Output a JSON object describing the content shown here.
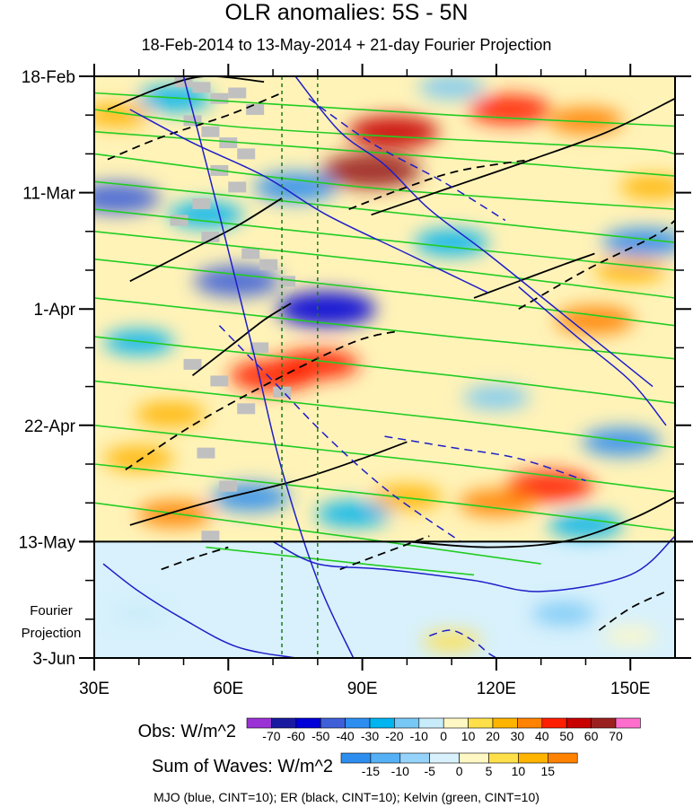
{
  "chart_data": {
    "type": "heatmap",
    "title": "OLR anomalies: 5S - 5N",
    "subtitle": "18-Feb-2014 to 13-May-2014 + 21-day Fourier Projection",
    "x_axis": {
      "range_deg_east": [
        30,
        160
      ],
      "ticks": [
        30,
        60,
        90,
        120,
        150
      ],
      "tick_labels": [
        "30E",
        "60E",
        "90E",
        "120E",
        "150E"
      ]
    },
    "y_axis": {
      "reversed": true,
      "range": [
        "2014-02-18",
        "2014-06-03"
      ],
      "ticks": [
        "2014-02-18",
        "2014-03-11",
        "2014-04-01",
        "2014-04-22",
        "2014-05-13",
        "2014-06-03"
      ],
      "tick_labels": [
        "18-Feb",
        "11-Mar",
        "1-Apr",
        "22-Apr",
        "13-May",
        "3-Jun"
      ]
    },
    "projection_label": [
      "Fourier",
      "Projection"
    ],
    "observation_end": "2014-05-13",
    "reference_lines_deg_east": [
      72,
      80
    ],
    "colorbar_obs": {
      "label": "Obs: W/m^2",
      "levels": [
        -70,
        -60,
        -50,
        -40,
        -30,
        -20,
        -10,
        0,
        10,
        20,
        30,
        40,
        50,
        60,
        70
      ],
      "colors": [
        "#9a32d6",
        "#1a1aa0",
        "#0000d8",
        "#3f5fd8",
        "#2e8ef0",
        "#00b4f0",
        "#78c8f5",
        "#c9ecfa",
        "#fff8c4",
        "#ffe04a",
        "#ffb400",
        "#ff8200",
        "#ff1e00",
        "#c80000",
        "#9a2020",
        "#ff6ecc"
      ]
    },
    "colorbar_waves": {
      "label": "Sum of Waves: W/m^2",
      "levels": [
        -15,
        -10,
        -5,
        0,
        5,
        10,
        15
      ],
      "colors": [
        "#2e8ef0",
        "#55b0f5",
        "#96d3fa",
        "#d8f1fc",
        "#fff8c4",
        "#ffe04a",
        "#ffb400",
        "#ff8200"
      ]
    },
    "contour_legend": "MJO (blue, CINT=10); ER (black, CINT=10); Kelvin (green, CINT=10)",
    "contour_colors": {
      "mjo": "#1e1ec8",
      "er": "#000000",
      "kelvin": "#22cc22"
    },
    "anomaly_blobs": [
      {
        "lon": 97,
        "date": "2014-02-28",
        "value": 50
      },
      {
        "lon": 92,
        "date": "2014-03-07",
        "value": 60
      },
      {
        "lon": 123,
        "date": "2014-02-24",
        "value": 40
      },
      {
        "lon": 140,
        "date": "2014-02-26",
        "value": 30
      },
      {
        "lon": 70,
        "date": "2014-04-13",
        "value": 45
      },
      {
        "lon": 80,
        "date": "2014-04-11",
        "value": 40
      },
      {
        "lon": 132,
        "date": "2014-05-03",
        "value": 45
      },
      {
        "lon": 120,
        "date": "2014-05-06",
        "value": 30
      },
      {
        "lon": 142,
        "date": "2014-04-03",
        "value": 35
      },
      {
        "lon": 47,
        "date": "2014-04-20",
        "value": 25
      },
      {
        "lon": 40,
        "date": "2014-04-28",
        "value": 25
      },
      {
        "lon": 150,
        "date": "2014-03-25",
        "value": 25
      },
      {
        "lon": 155,
        "date": "2014-03-10",
        "value": 20
      },
      {
        "lon": 48,
        "date": "2014-05-08",
        "value": 30
      },
      {
        "lon": 100,
        "date": "2014-05-05",
        "value": 25
      },
      {
        "lon": 35,
        "date": "2014-02-25",
        "value": 20
      },
      {
        "lon": 82,
        "date": "2014-04-01",
        "value": -60
      },
      {
        "lon": 62,
        "date": "2014-03-27",
        "value": -45
      },
      {
        "lon": 75,
        "date": "2014-03-10",
        "value": -40
      },
      {
        "lon": 35,
        "date": "2014-03-12",
        "value": -45
      },
      {
        "lon": 55,
        "date": "2014-03-15",
        "value": -30
      },
      {
        "lon": 110,
        "date": "2014-03-20",
        "value": -30
      },
      {
        "lon": 148,
        "date": "2014-04-25",
        "value": -35
      },
      {
        "lon": 140,
        "date": "2014-05-10",
        "value": -30
      },
      {
        "lon": 88,
        "date": "2014-05-08",
        "value": -30
      },
      {
        "lon": 65,
        "date": "2014-05-05",
        "value": -35
      },
      {
        "lon": 48,
        "date": "2014-02-22",
        "value": -30
      },
      {
        "lon": 153,
        "date": "2014-03-20",
        "value": -40
      },
      {
        "lon": 40,
        "date": "2014-04-07",
        "value": -25
      },
      {
        "lon": 120,
        "date": "2014-04-17",
        "value": -20
      },
      {
        "lon": 110,
        "date": "2014-02-20",
        "value": -20
      },
      {
        "lon": 135,
        "date": "2014-05-26",
        "value": -15
      },
      {
        "lon": 110,
        "date": "2014-05-31",
        "value": 10
      },
      {
        "lon": 150,
        "date": "2014-05-30",
        "value": 5
      },
      {
        "lon": 40,
        "date": "2014-05-26",
        "value": -5
      }
    ],
    "mjo_contours": [
      {
        "style": "solid",
        "lon": [
          38,
          52,
          68,
          82,
          100,
          118
        ],
        "date": [
          "2014-02-24",
          "2014-03-02",
          "2014-03-08",
          "2014-03-15",
          "2014-03-22",
          "2014-03-29"
        ]
      },
      {
        "style": "solid",
        "lon": [
          50,
          58,
          66,
          72,
          80,
          88
        ],
        "date": [
          "2014-02-18",
          "2014-03-15",
          "2014-04-10",
          "2014-04-30",
          "2014-05-20",
          "2014-06-03"
        ]
      },
      {
        "style": "solid",
        "lon": [
          75,
          85,
          95,
          105,
          118,
          135,
          155
        ],
        "date": [
          "2014-02-18",
          "2014-02-28",
          "2014-03-06",
          "2014-03-14",
          "2014-03-22",
          "2014-04-02",
          "2014-04-15"
        ]
      },
      {
        "style": "solid",
        "lon": [
          125,
          138,
          150,
          158
        ],
        "date": [
          "2014-03-28",
          "2014-04-06",
          "2014-04-14",
          "2014-04-22"
        ]
      },
      {
        "style": "solid",
        "lon": [
          70,
          80,
          95,
          115,
          130,
          150,
          160
        ],
        "date": [
          "2014-05-13",
          "2014-05-17",
          "2014-05-18",
          "2014-05-20",
          "2014-05-22",
          "2014-05-19",
          "2014-05-12"
        ]
      },
      {
        "style": "solid",
        "lon": [
          32,
          40,
          50,
          62,
          75
        ],
        "date": [
          "2014-05-17",
          "2014-05-22",
          "2014-05-27",
          "2014-06-01",
          "2014-06-03"
        ]
      },
      {
        "style": "dashed",
        "lon": [
          78,
          92,
          108,
          122
        ],
        "date": [
          "2014-02-22",
          "2014-03-02",
          "2014-03-09",
          "2014-03-16"
        ]
      },
      {
        "style": "dashed",
        "lon": [
          58,
          70,
          82,
          96,
          112
        ],
        "date": [
          "2014-04-04",
          "2014-04-14",
          "2014-04-24",
          "2014-05-04",
          "2014-05-13"
        ]
      },
      {
        "style": "dashed",
        "lon": [
          95,
          110,
          125,
          140
        ],
        "date": [
          "2014-04-24",
          "2014-04-26",
          "2014-04-28",
          "2014-05-02"
        ]
      },
      {
        "style": "dashed",
        "lon": [
          105,
          110,
          115,
          118,
          120
        ],
        "date": [
          "2014-05-30",
          "2014-05-29",
          "2014-05-31",
          "2014-06-02",
          "2014-06-03"
        ]
      }
    ],
    "er_contours": [
      {
        "style": "solid",
        "lon": [
          33,
          45,
          55,
          68
        ],
        "date": [
          "2014-02-24",
          "2014-02-20",
          "2014-02-18",
          "2014-02-19"
        ]
      },
      {
        "style": "solid",
        "lon": [
          92,
          110,
          128,
          145,
          160
        ],
        "date": [
          "2014-03-15",
          "2014-03-10",
          "2014-03-05",
          "2014-02-28",
          "2014-02-22"
        ]
      },
      {
        "style": "solid",
        "lon": [
          38,
          50,
          62,
          72
        ],
        "date": [
          "2014-03-27",
          "2014-03-22",
          "2014-03-17",
          "2014-03-12"
        ]
      },
      {
        "style": "solid",
        "lon": [
          115,
          125,
          135,
          142
        ],
        "date": [
          "2014-03-30",
          "2014-03-27",
          "2014-03-24",
          "2014-03-22"
        ]
      },
      {
        "style": "solid",
        "lon": [
          52,
          60,
          68,
          74
        ],
        "date": [
          "2014-04-13",
          "2014-04-08",
          "2014-04-03",
          "2014-03-31"
        ]
      },
      {
        "style": "solid",
        "lon": [
          38,
          55,
          75,
          90,
          100
        ],
        "date": [
          "2014-05-10",
          "2014-05-06",
          "2014-05-02",
          "2014-04-28",
          "2014-04-25"
        ]
      },
      {
        "style": "solid",
        "lon": [
          100,
          118,
          135,
          150,
          160
        ],
        "date": [
          "2014-05-13",
          "2014-05-14",
          "2014-05-13",
          "2014-05-09",
          "2014-05-05"
        ]
      },
      {
        "style": "dashed",
        "lon": [
          33,
          45,
          60,
          72
        ],
        "date": [
          "2014-03-05",
          "2014-03-01",
          "2014-02-25",
          "2014-02-21"
        ]
      },
      {
        "style": "dashed",
        "lon": [
          87,
          100,
          112,
          128
        ],
        "date": [
          "2014-03-14",
          "2014-03-10",
          "2014-03-07",
          "2014-03-05"
        ]
      },
      {
        "style": "dashed",
        "lon": [
          125,
          140,
          155,
          160
        ],
        "date": [
          "2014-04-01",
          "2014-03-25",
          "2014-03-19",
          "2014-03-16"
        ]
      },
      {
        "style": "dashed",
        "lon": [
          37,
          52,
          70,
          88,
          98
        ],
        "date": [
          "2014-04-30",
          "2014-04-22",
          "2014-04-14",
          "2014-04-07",
          "2014-04-05"
        ]
      },
      {
        "style": "dashed",
        "lon": [
          45,
          52,
          60
        ],
        "date": [
          "2014-05-18",
          "2014-05-16",
          "2014-05-14"
        ]
      },
      {
        "style": "dashed",
        "lon": [
          85,
          95,
          105
        ],
        "date": [
          "2014-05-18",
          "2014-05-15",
          "2014-05-12"
        ]
      },
      {
        "style": "dashed",
        "lon": [
          143,
          150,
          158
        ],
        "date": [
          "2014-05-29",
          "2014-05-25",
          "2014-05-22"
        ]
      }
    ],
    "kelvin_contours": [
      {
        "style": "solid",
        "lon": [
          30,
          70,
          110,
          160
        ],
        "date": [
          "2014-02-21",
          "2014-02-23",
          "2014-02-25",
          "2014-02-27"
        ]
      },
      {
        "style": "solid",
        "lon": [
          30,
          60,
          100,
          150,
          160
        ],
        "date": [
          "2014-02-24",
          "2014-02-27",
          "2014-03-01",
          "2014-03-03",
          "2014-03-04"
        ]
      },
      {
        "style": "solid",
        "lon": [
          30,
          80,
          130,
          160
        ],
        "date": [
          "2014-02-28",
          "2014-03-03",
          "2014-03-06",
          "2014-03-08"
        ]
      },
      {
        "style": "solid",
        "lon": [
          30,
          90,
          160
        ],
        "date": [
          "2014-03-04",
          "2014-03-10",
          "2014-03-14"
        ]
      },
      {
        "style": "solid",
        "lon": [
          30,
          90,
          160
        ],
        "date": [
          "2014-03-09",
          "2014-03-14",
          "2014-03-20"
        ]
      },
      {
        "style": "solid",
        "lon": [
          30,
          100,
          160
        ],
        "date": [
          "2014-03-14",
          "2014-03-20",
          "2014-03-25"
        ]
      },
      {
        "style": "solid",
        "lon": [
          30,
          100,
          160
        ],
        "date": [
          "2014-03-18",
          "2014-03-24",
          "2014-03-30"
        ]
      },
      {
        "style": "solid",
        "lon": [
          30,
          110,
          160
        ],
        "date": [
          "2014-03-23",
          "2014-03-30",
          "2014-04-04"
        ]
      },
      {
        "style": "solid",
        "lon": [
          30,
          110,
          160
        ],
        "date": [
          "2014-03-30",
          "2014-04-06",
          "2014-04-10"
        ]
      },
      {
        "style": "solid",
        "lon": [
          30,
          110,
          160
        ],
        "date": [
          "2014-04-06",
          "2014-04-13",
          "2014-04-18"
        ]
      },
      {
        "style": "solid",
        "lon": [
          30,
          110,
          160
        ],
        "date": [
          "2014-04-14",
          "2014-04-21",
          "2014-04-26"
        ]
      },
      {
        "style": "solid",
        "lon": [
          30,
          110,
          160
        ],
        "date": [
          "2014-04-22",
          "2014-04-29",
          "2014-05-04"
        ]
      },
      {
        "style": "solid",
        "lon": [
          30,
          110,
          160
        ],
        "date": [
          "2014-04-29",
          "2014-05-06",
          "2014-05-11"
        ]
      },
      {
        "style": "solid",
        "lon": [
          30,
          95,
          130
        ],
        "date": [
          "2014-05-06",
          "2014-05-13",
          "2014-05-17"
        ]
      },
      {
        "style": "solid",
        "lon": [
          55,
          90,
          115
        ],
        "date": [
          "2014-05-14",
          "2014-05-17",
          "2014-05-19"
        ]
      }
    ],
    "missing_data": [
      {
        "lon": 50,
        "date": "2014-02-19"
      },
      {
        "lon": 54,
        "date": "2014-02-20"
      },
      {
        "lon": 58,
        "date": "2014-02-22"
      },
      {
        "lon": 62,
        "date": "2014-02-21"
      },
      {
        "lon": 66,
        "date": "2014-02-24"
      },
      {
        "lon": 52,
        "date": "2014-02-26"
      },
      {
        "lon": 56,
        "date": "2014-02-28"
      },
      {
        "lon": 60,
        "date": "2014-03-02"
      },
      {
        "lon": 64,
        "date": "2014-03-04"
      },
      {
        "lon": 58,
        "date": "2014-03-07"
      },
      {
        "lon": 62,
        "date": "2014-03-10"
      },
      {
        "lon": 54,
        "date": "2014-03-13"
      },
      {
        "lon": 49,
        "date": "2014-03-16"
      },
      {
        "lon": 56,
        "date": "2014-03-19"
      },
      {
        "lon": 65,
        "date": "2014-03-22"
      },
      {
        "lon": 69,
        "date": "2014-03-24"
      },
      {
        "lon": 73,
        "date": "2014-03-27"
      },
      {
        "lon": 67,
        "date": "2014-04-08"
      },
      {
        "lon": 52,
        "date": "2014-04-11"
      },
      {
        "lon": 58,
        "date": "2014-04-14"
      },
      {
        "lon": 72,
        "date": "2014-04-16"
      },
      {
        "lon": 64,
        "date": "2014-04-19"
      },
      {
        "lon": 55,
        "date": "2014-04-27"
      },
      {
        "lon": 60,
        "date": "2014-05-03"
      },
      {
        "lon": 56,
        "date": "2014-05-12"
      }
    ]
  }
}
